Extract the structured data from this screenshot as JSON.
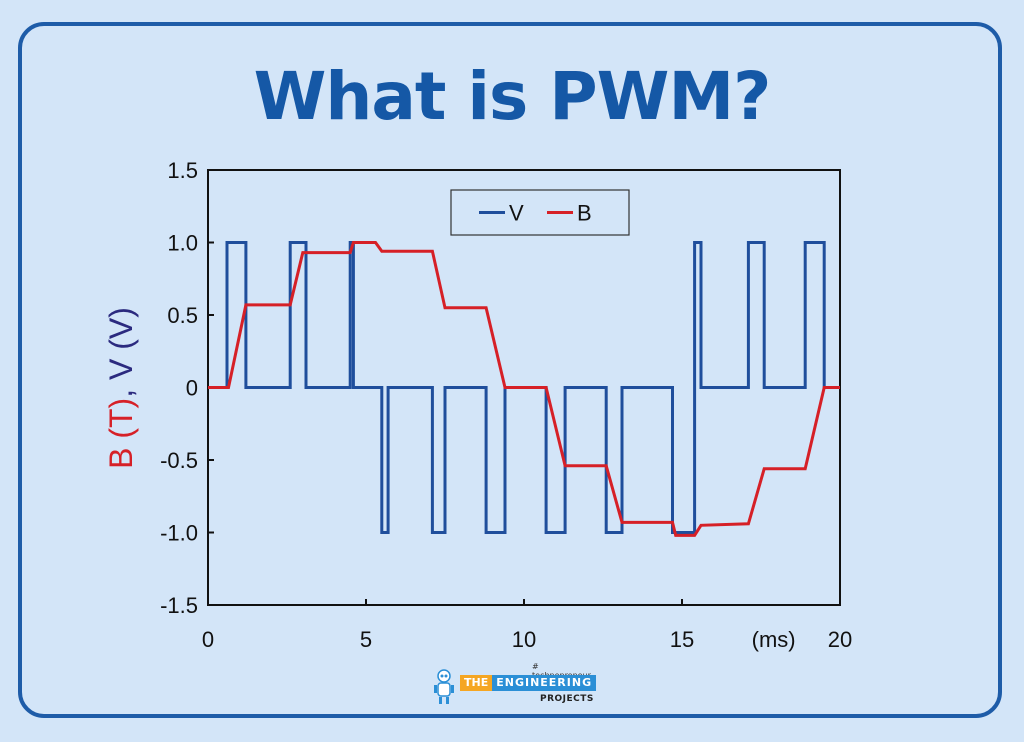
{
  "title": "What is PWM?",
  "chart_data": {
    "type": "line",
    "ylabel_parts": [
      {
        "text": "B (T)",
        "color": "#d62027"
      },
      {
        "text": ", V (V)",
        "color": "#2b2a7f"
      }
    ],
    "xunit": "(ms)",
    "xlim": [
      0,
      20
    ],
    "ylim": [
      -1.5,
      1.5
    ],
    "xticks": [
      0,
      5,
      10,
      15,
      20
    ],
    "xtick_labels": [
      "0",
      "5",
      "10",
      "15",
      "20"
    ],
    "yticks": [
      1.5,
      1.0,
      0.5,
      0,
      -0.5,
      -1.0,
      -1.5
    ],
    "ytick_labels": [
      "1.5",
      "1.0",
      "0.5",
      "0",
      "-0.5",
      "-1.0",
      "-1.5"
    ],
    "grid": false,
    "legend": "top-center",
    "series": [
      {
        "name": "V",
        "color": "#1f4e9c",
        "x": [
          0,
          0.6,
          0.6,
          1.2,
          1.2,
          2.6,
          2.6,
          3.1,
          3.1,
          4.5,
          4.5,
          4.6,
          4.6,
          5.5,
          5.5,
          5.7,
          5.7,
          7.1,
          7.1,
          7.5,
          7.5,
          8.8,
          8.8,
          9.4,
          9.4,
          10.7,
          10.7,
          11.3,
          11.3,
          12.6,
          12.6,
          13.1,
          13.1,
          14.7,
          14.7,
          15.4,
          15.4,
          15.6,
          15.6,
          17.1,
          17.1,
          17.6,
          17.6,
          18.9,
          18.9,
          19.5,
          19.5,
          20
        ],
        "y": [
          0,
          0,
          1.0,
          1.0,
          0,
          0,
          1.0,
          1.0,
          0,
          0,
          1.0,
          1.0,
          0,
          0,
          -1.0,
          -1.0,
          0,
          0,
          -1.0,
          -1.0,
          0,
          0,
          -1.0,
          -1.0,
          0,
          0,
          -1.0,
          -1.0,
          0,
          0,
          -1.0,
          -1.0,
          0,
          0,
          -1.0,
          -1.0,
          1.0,
          1.0,
          0,
          0,
          1.0,
          1.0,
          0,
          0,
          1.0,
          1.0,
          0,
          0
        ]
      },
      {
        "name": "B",
        "color": "#d62027",
        "x": [
          0,
          0.65,
          1.2,
          2.6,
          3.0,
          4.5,
          4.6,
          5.3,
          5.5,
          7.1,
          7.5,
          8.8,
          9.4,
          10.7,
          11.3,
          12.6,
          13.1,
          14.7,
          14.8,
          15.4,
          15.6,
          17.1,
          17.6,
          18.9,
          19.5,
          20
        ],
        "y": [
          0,
          0,
          0.57,
          0.57,
          0.93,
          0.93,
          1.0,
          1.0,
          0.94,
          0.94,
          0.55,
          0.55,
          0,
          0,
          -0.54,
          -0.54,
          -0.93,
          -0.93,
          -1.02,
          -1.02,
          -0.95,
          -0.94,
          -0.56,
          -0.56,
          0,
          0
        ]
      }
    ]
  },
  "brand": {
    "tagline": "# technopreneur",
    "word1": "THE",
    "word2": "ENGINEERING",
    "word3": "PROJECTS"
  }
}
